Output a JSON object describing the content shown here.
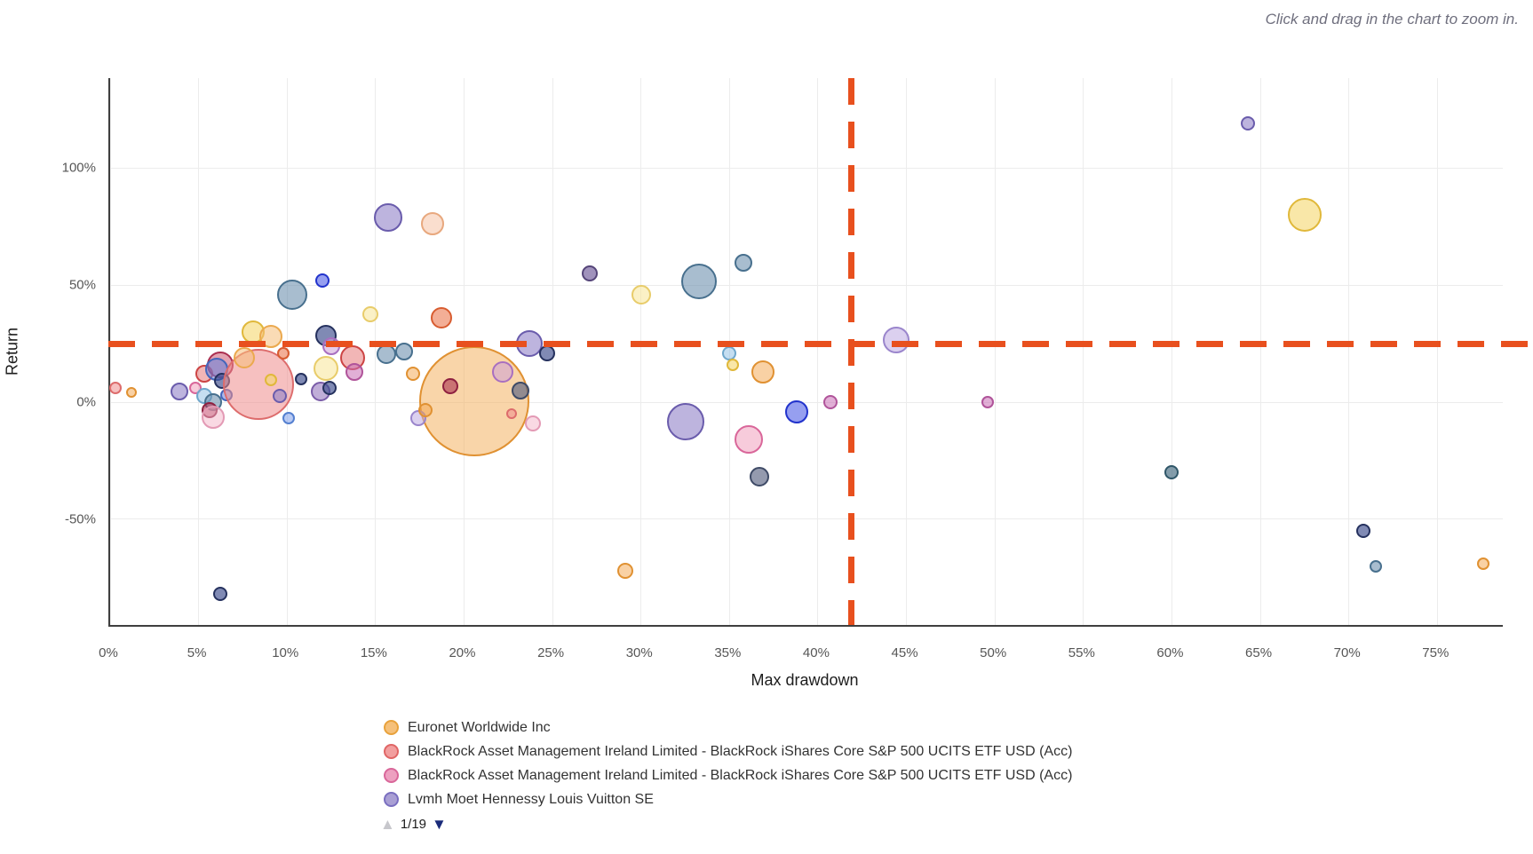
{
  "hint": "Click and drag in the chart to zoom in.",
  "chart_data": {
    "type": "scatter",
    "subtype": "bubble",
    "title": "",
    "xlabel": "Max drawdown",
    "ylabel": "Return",
    "grid": true,
    "x_range": [
      0,
      78.7
    ],
    "y_range": [
      -95.1,
      138.3
    ],
    "x_gridlines": [
      0,
      5,
      10,
      15,
      20,
      25,
      30,
      35,
      40,
      45,
      50,
      55,
      60,
      65,
      70,
      75
    ],
    "x_tick_labels": [
      "0%",
      "5%",
      "10%",
      "15%",
      "20%",
      "25%",
      "30%",
      "35%",
      "40%",
      "45%",
      "50%",
      "55%",
      "60%",
      "65%",
      "70%",
      "75%"
    ],
    "y_gridlines": [
      -50,
      0,
      50,
      100
    ],
    "y_tick_labels": [
      "-50%",
      "0%",
      "50%",
      "100%"
    ],
    "crosshair": {
      "x_value": 42,
      "y_value": 25,
      "color": "#e8501e",
      "note": "dashed average lines"
    },
    "palette": {
      "orange": {
        "fill": "rgba(243,164,74,0.50)",
        "stroke": "#e09132"
      },
      "bigorange": {
        "fill": "rgba(244,178,98,0.55)",
        "stroke": "#e09132"
      },
      "lightorange": {
        "fill": "rgba(246,190,120,0.55)",
        "stroke": "#eba94e"
      },
      "salmon": {
        "fill": "rgba(238,140,140,0.55)",
        "stroke": "#dd6c6c"
      },
      "red": {
        "fill": "rgba(230,110,110,0.50)",
        "stroke": "#cc4444"
      },
      "crimson": {
        "fill": "rgba(200,70,100,0.50)",
        "stroke": "#aa2e50"
      },
      "darkred": {
        "fill": "rgba(170,50,80,0.60)",
        "stroke": "#8e2040"
      },
      "orangered": {
        "fill": "rgba(235,120,80,0.60)",
        "stroke": "#d85c30"
      },
      "pink": {
        "fill": "rgba(240,160,190,0.55)",
        "stroke": "#d9679a"
      },
      "palepink": {
        "fill": "rgba(243,180,200,0.50)",
        "stroke": "#e39ab5"
      },
      "magenta": {
        "fill": "rgba(200,110,180,0.55)",
        "stroke": "#b0549a"
      },
      "plum": {
        "fill": "rgba(205,160,215,0.55)",
        "stroke": "#a86fc0"
      },
      "lavender": {
        "fill": "rgba(190,170,225,0.55)",
        "stroke": "#9a85cc"
      },
      "purple": {
        "fill": "rgba(145,130,200,0.60)",
        "stroke": "#6a5cac"
      },
      "darkpurple": {
        "fill": "rgba(120,100,160,0.70)",
        "stroke": "#554579"
      },
      "violet": {
        "fill": "rgba(150,120,190,0.60)",
        "stroke": "#7a5ca8"
      },
      "navy": {
        "fill": "rgba(60,75,140,0.65)",
        "stroke": "#25315e"
      },
      "royalblue": {
        "fill": "rgba(80,95,230,0.60)",
        "stroke": "#2233cc"
      },
      "blue": {
        "fill": "rgba(100,130,220,0.55)",
        "stroke": "#4466bb"
      },
      "cornflower": {
        "fill": "rgba(130,160,235,0.55)",
        "stroke": "#5580d0"
      },
      "lightblue": {
        "fill": "rgba(150,195,230,0.55)",
        "stroke": "#6fa7cc"
      },
      "steel": {
        "fill": "rgba(110,145,175,0.60)",
        "stroke": "#48708e"
      },
      "darkteal": {
        "fill": "rgba(80,115,135,0.70)",
        "stroke": "#2f5668"
      },
      "darkslate": {
        "fill": "rgba(90,100,130,0.65)",
        "stroke": "#3e4a66"
      },
      "yellow": {
        "fill": "rgba(245,215,110,0.60)",
        "stroke": "#e0b83a"
      },
      "paleyellow": {
        "fill": "rgba(248,232,160,0.60)",
        "stroke": "#e8cc6a"
      },
      "peach": {
        "fill": "rgba(245,195,165,0.55)",
        "stroke": "#e8a87e"
      }
    },
    "points_format": [
      "max_drawdown_pct",
      "return_pct",
      "radius_px",
      "color"
    ],
    "points": [
      [
        0.3,
        6,
        7,
        "salmon"
      ],
      [
        1.2,
        4,
        6,
        "orange"
      ],
      [
        3.9,
        4.5,
        10,
        "purple"
      ],
      [
        4.8,
        6,
        7,
        "pink"
      ],
      [
        5.3,
        12,
        10,
        "red"
      ],
      [
        6.2,
        16,
        15,
        "crimson"
      ],
      [
        6.0,
        14,
        13,
        "blue"
      ],
      [
        6.3,
        9,
        9,
        "navy"
      ],
      [
        5.3,
        2.5,
        9,
        "lightblue"
      ],
      [
        5.8,
        0,
        10,
        "steel"
      ],
      [
        5.6,
        -3.5,
        9,
        "darkred"
      ],
      [
        5.8,
        -6.5,
        13,
        "palepink"
      ],
      [
        6.6,
        3,
        7,
        "blue"
      ],
      [
        6.2,
        -82,
        8,
        "navy"
      ],
      [
        8.4,
        7.5,
        40,
        "salmon"
      ],
      [
        8.1,
        30,
        13,
        "yellow"
      ],
      [
        9.1,
        28,
        13,
        "lightorange"
      ],
      [
        9.8,
        21,
        7,
        "orangered"
      ],
      [
        7.6,
        19,
        12,
        "lightorange"
      ],
      [
        9.1,
        9.5,
        7,
        "yellow"
      ],
      [
        9.6,
        2.5,
        8,
        "purple"
      ],
      [
        10.3,
        46,
        17,
        "steel"
      ],
      [
        12.0,
        52,
        8,
        "royalblue"
      ],
      [
        10.8,
        10,
        7,
        "navy"
      ],
      [
        11.9,
        4.5,
        11,
        "violet"
      ],
      [
        10.1,
        -7,
        7,
        "cornflower"
      ],
      [
        12.2,
        28.5,
        12,
        "navy"
      ],
      [
        12.5,
        24,
        10,
        "plum"
      ],
      [
        12.4,
        6,
        8,
        "navy"
      ],
      [
        13.7,
        19,
        14,
        "red"
      ],
      [
        13.8,
        13,
        10,
        "magenta"
      ],
      [
        12.2,
        14.5,
        14,
        "paleyellow"
      ],
      [
        14.7,
        37.5,
        9,
        "paleyellow"
      ],
      [
        15.7,
        79,
        16,
        "purple"
      ],
      [
        18.2,
        76,
        13,
        "peach"
      ],
      [
        15.6,
        20.5,
        11,
        "steel"
      ],
      [
        16.6,
        21.5,
        10,
        "steel"
      ],
      [
        17.1,
        12,
        8,
        "orange"
      ],
      [
        18.7,
        36,
        12,
        "orangered"
      ],
      [
        20.6,
        0.5,
        62,
        "bigorange"
      ],
      [
        19.2,
        7,
        9,
        "darkred"
      ],
      [
        22.2,
        13,
        12,
        "plum"
      ],
      [
        23.2,
        5,
        10,
        "darkslate"
      ],
      [
        17.4,
        -7,
        9,
        "lavender"
      ],
      [
        17.8,
        -3.5,
        8,
        "orange"
      ],
      [
        22.7,
        -5,
        6,
        "salmon"
      ],
      [
        23.9,
        -9,
        9,
        "palepink"
      ],
      [
        23.7,
        25,
        15,
        "purple"
      ],
      [
        24.7,
        21,
        9,
        "navy"
      ],
      [
        27.1,
        55,
        9,
        "darkpurple"
      ],
      [
        30.0,
        46,
        11,
        "paleyellow"
      ],
      [
        33.3,
        51.5,
        20,
        "steel"
      ],
      [
        35.8,
        59.5,
        10,
        "steel"
      ],
      [
        35.0,
        21,
        8,
        "lightblue"
      ],
      [
        35.2,
        16,
        7,
        "yellow"
      ],
      [
        36.9,
        13,
        13,
        "orange"
      ],
      [
        32.5,
        -8.5,
        21,
        "purple"
      ],
      [
        36.1,
        -16,
        16,
        "pink"
      ],
      [
        36.7,
        -32,
        11,
        "darkslate"
      ],
      [
        38.8,
        -4,
        13,
        "royalblue"
      ],
      [
        40.7,
        0,
        8,
        "magenta"
      ],
      [
        29.1,
        -72,
        9,
        "orange"
      ],
      [
        44.4,
        26.5,
        15,
        "lavender"
      ],
      [
        49.6,
        0,
        7,
        "magenta"
      ],
      [
        60.0,
        -30,
        8,
        "darkteal"
      ],
      [
        64.3,
        119,
        8,
        "purple"
      ],
      [
        67.5,
        80,
        19,
        "yellow"
      ],
      [
        70.8,
        -55,
        8,
        "navy"
      ],
      [
        71.5,
        -70,
        7,
        "steel"
      ],
      [
        77.6,
        -69,
        7,
        "orange"
      ]
    ]
  },
  "legend": {
    "items": [
      {
        "label": "Euronet Worldwide Inc",
        "fill": "#f5c07a",
        "stroke": "#e8a23c"
      },
      {
        "label": "BlackRock Asset Management Ireland Limited - BlackRock iShares Core S&P 500 UCITS ETF USD (Acc)",
        "fill": "#f29f9f",
        "stroke": "#e06666"
      },
      {
        "label": "BlackRock Asset Management Ireland Limited - BlackRock iShares Core S&P 500 UCITS ETF USD (Acc)",
        "fill": "#eda0c0",
        "stroke": "#d9679a"
      },
      {
        "label": "Lvmh Moet Hennessy Louis Vuitton SE",
        "fill": "#a99fd4",
        "stroke": "#7a6fc0"
      }
    ],
    "pager": {
      "up": "▲",
      "label": "1/19",
      "down": "▼"
    }
  }
}
